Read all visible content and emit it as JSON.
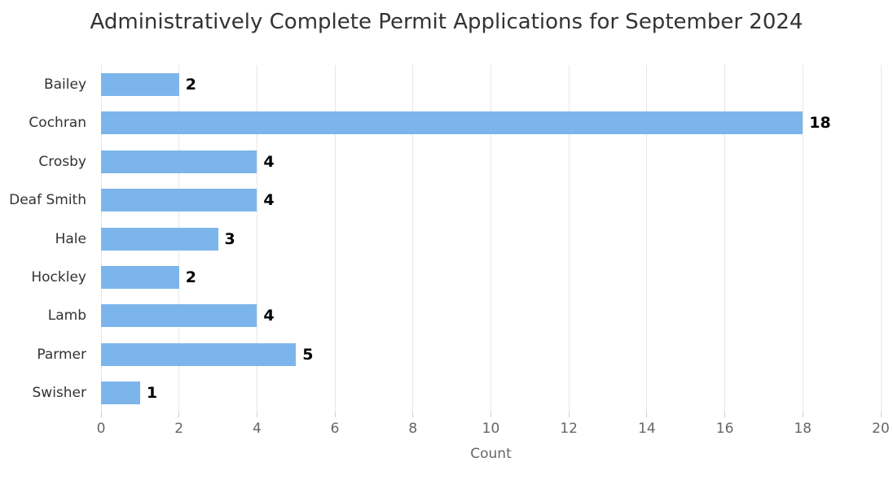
{
  "chart_data": {
    "type": "bar",
    "orientation": "horizontal",
    "title": "Administratively Complete Permit Applications for September 2024",
    "categories": [
      "Bailey",
      "Cochran",
      "Crosby",
      "Deaf Smith",
      "Hale",
      "Hockley",
      "Lamb",
      "Parmer",
      "Swisher"
    ],
    "values": [
      2,
      18,
      4,
      4,
      3,
      2,
      4,
      5,
      1
    ],
    "xlabel": "Count",
    "ylabel": "",
    "xlim": [
      0,
      20
    ],
    "xticks": [
      0,
      2,
      4,
      6,
      8,
      10,
      12,
      14,
      16,
      18,
      20
    ],
    "grid": true,
    "legend": "none",
    "data_labels": true,
    "colors": {
      "bar": "#7cb5ec",
      "grid": "#e6e6e6",
      "tick": "#cccccc",
      "axis_label": "#666666",
      "category_label": "#333333",
      "value_label": "#000000",
      "title": "#333333",
      "background": "#ffffff"
    }
  }
}
